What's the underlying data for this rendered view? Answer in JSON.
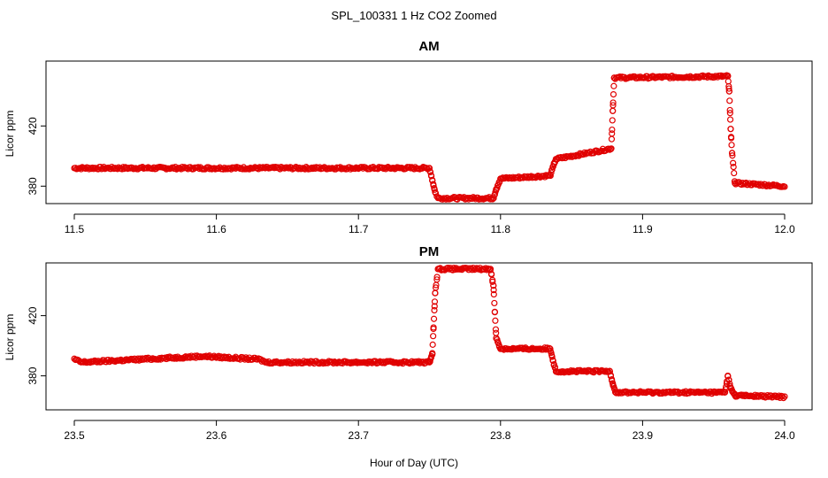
{
  "chart_data": {
    "type": "scatter",
    "title": "SPL_100331  1 Hz CO2 Zoomed",
    "xlabel": "Hour of Day (UTC)",
    "marker_color": "#e00000",
    "panels": [
      {
        "title": "AM",
        "ylabel": "Licor ppm",
        "xlim": [
          11.5,
          12.0
        ],
        "ylim": [
          369,
          463
        ],
        "xticks": [
          "11.5",
          "11.6",
          "11.7",
          "11.8",
          "11.9",
          "12.0"
        ],
        "yticks": [
          "380",
          "420"
        ],
        "series": [
          {
            "x": [
              11.5,
              11.75,
              11.752,
              11.754,
              11.756,
              11.795,
              11.797,
              11.8,
              11.835,
              11.837,
              11.839,
              11.878,
              11.879,
              11.88,
              11.96,
              11.961,
              11.962,
              11.963,
              11.965,
              12.0
            ],
            "y": [
              392,
              392,
              384,
              376,
              372,
              372,
              378,
              385,
              387,
              393,
              398,
              405,
              430,
              452,
              453,
              443,
              418,
              402,
              382,
              380
            ]
          }
        ]
      },
      {
        "title": "PM",
        "ylabel": "Licor ppm",
        "xlim": [
          23.5,
          24.0
        ],
        "ylim": [
          358,
          455
        ],
        "xticks": [
          "23.5",
          "23.6",
          "23.7",
          "23.8",
          "23.9",
          "24.0"
        ],
        "yticks": [
          "380",
          "420"
        ],
        "series": [
          {
            "x": [
              23.5,
              23.505,
              23.59,
              23.63,
              23.635,
              23.75,
              23.752,
              23.754,
              23.756,
              23.793,
              23.795,
              23.797,
              23.8,
              23.835,
              23.837,
              23.839,
              23.877,
              23.879,
              23.881,
              23.958,
              23.96,
              23.962,
              23.965,
              24.0
            ],
            "y": [
              391,
              389,
              393,
              391,
              389,
              389,
              395,
              435,
              451,
              451,
              440,
              405,
              398,
              398,
              390,
              383,
              383,
              375,
              369,
              369,
              380,
              372,
              367,
              366
            ]
          }
        ]
      }
    ]
  }
}
